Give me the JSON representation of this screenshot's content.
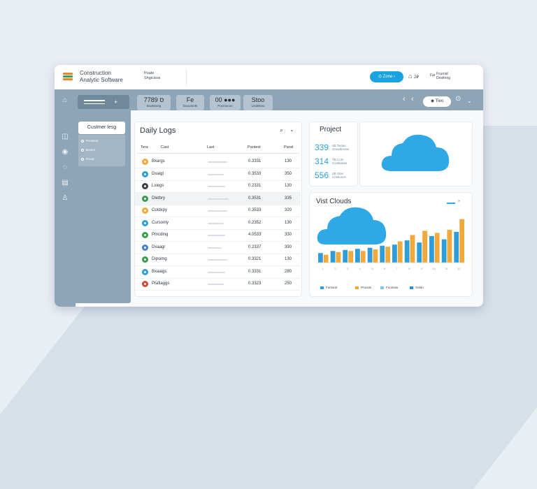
{
  "app": {
    "title_line1": "Construction",
    "title_line2": "Analytic Software"
  },
  "header": {
    "crumb_line1": "Poate",
    "crumb_line2": "Shgicisos",
    "pill_button": "Zone",
    "icon_a_label": "2₽",
    "icon_b_label": "Fat",
    "right_text_line1": "Fcurnid",
    "right_text_line2": "Desfmng"
  },
  "toolbar": {
    "chips": [
      {
        "value": "7ס 789",
        "label": "Boatstung"
      },
      {
        "value": "Fe",
        "label": "Dooumnts"
      },
      {
        "value": "00 ●●●",
        "label": "Pocmocon"
      },
      {
        "value": "Stoo",
        "label": "Lindsitiou"
      }
    ],
    "pill": "Tieo"
  },
  "nav": {
    "active": "Custmer lesg",
    "sub_items": [
      "Pecetion",
      "Boomi",
      "Pocat"
    ]
  },
  "logs": {
    "title": "Daily Logs",
    "columns": [
      "Tera",
      "Cast",
      "Last",
      "Pantest",
      "Pand"
    ],
    "rows": [
      {
        "name": "Bxargs",
        "code": "0.3331",
        "num": "130",
        "avatar": "#f2a93b",
        "bar": 0.55
      },
      {
        "name": "Dxaigt",
        "code": "0.3533",
        "num": "350",
        "avatar": "#2f9ed8",
        "bar": 0.45
      },
      {
        "name": "Lxiegs",
        "code": "0.2331",
        "num": "130",
        "avatar": "#3a3f47",
        "bar": 0.5
      },
      {
        "name": "Dletbry",
        "code": "0.3531",
        "num": "335",
        "avatar": "#3a9d4c",
        "bar": 0.6
      },
      {
        "name": "Cotdxpy",
        "code": "0.3533",
        "num": "320",
        "avatar": "#f2a93b",
        "bar": 0.55
      },
      {
        "name": "Cursomy",
        "code": "0.2352",
        "num": "130",
        "avatar": "#2f9ed8",
        "bar": 0.45
      },
      {
        "name": "Pmcdlng",
        "code": "4.0533",
        "num": "330",
        "avatar": "#3a9d4c",
        "bar": 0.5
      },
      {
        "name": "Dxaagr",
        "code": "0.2337",
        "num": "330",
        "avatar": "#4a7ed6",
        "bar": 0.4
      },
      {
        "name": "Dipsimg",
        "code": "0.3321",
        "num": "130",
        "avatar": "#3a9d4c",
        "bar": 0.55
      },
      {
        "name": "Bxaaigs",
        "code": "0.3331",
        "num": "280",
        "avatar": "#2f9ed8",
        "bar": 0.5
      },
      {
        "name": "Prafiaggs",
        "code": "0.3323",
        "num": "250",
        "avatar": "#d24a3a",
        "bar": 0.45
      }
    ]
  },
  "project": {
    "title": "Project",
    "stats": [
      {
        "value": "339",
        "label1": "4B Tastas",
        "label2": "Gnusdinoas"
      },
      {
        "value": "314",
        "label1": "TB Cots",
        "label2": "Ciosbiaras"
      },
      {
        "value": "556",
        "label1": "2B Stoe",
        "label2": "Cristiones"
      }
    ]
  },
  "chart_card": {
    "title": "Vist Clouds",
    "legend": [
      "Fumsort",
      "Pruosts",
      "Fuomias",
      "Sobto"
    ],
    "legend_colors": [
      "#2f9ed8",
      "#f2a93b",
      "#7fc6ea",
      "#2a8fd0"
    ]
  },
  "chart_data": {
    "type": "bar",
    "title": "Vist Clouds",
    "series": [
      {
        "name": "Fumsort",
        "values": [
          0.18,
          0.22,
          0.24,
          0.26,
          0.28,
          0.32,
          0.34,
          0.42,
          0.38,
          0.5,
          0.44,
          0.58
        ]
      },
      {
        "name": "Pruosts",
        "values": [
          0.15,
          0.2,
          0.22,
          0.22,
          0.25,
          0.3,
          0.4,
          0.52,
          0.6,
          0.56,
          0.62,
          0.82
        ]
      }
    ],
    "categories": [
      "1",
      "2",
      "3",
      "4",
      "5",
      "6",
      "7",
      "8",
      "9",
      "10",
      "11",
      "12"
    ],
    "series_colors": [
      "#2f9ed8",
      "#f2a93b"
    ],
    "ylim": [
      0,
      1
    ],
    "grid": false
  },
  "colors": {
    "accent": "#1aa3e0",
    "toolbar": "#8ea4b7",
    "cloud": "#2fa9e6"
  },
  "icons": [
    "home-icon",
    "chart-icon",
    "alert-icon",
    "chat-icon",
    "doc-icon",
    "user-icon",
    "search-icon",
    "chevron-down-icon",
    "cloud-icon"
  ]
}
